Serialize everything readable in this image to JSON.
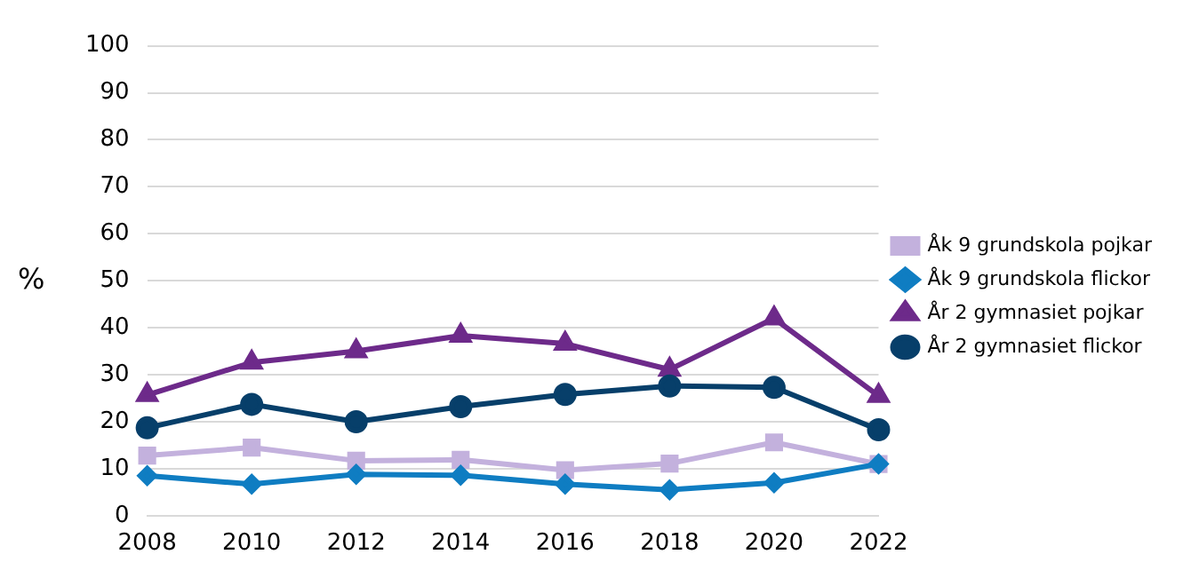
{
  "chart_data": {
    "type": "line",
    "ylabel": "%",
    "categories": [
      "2008",
      "2010",
      "2012",
      "2014",
      "2016",
      "2018",
      "2020",
      "2022"
    ],
    "ylim": [
      0,
      100
    ],
    "yticks": [
      0,
      10,
      20,
      30,
      40,
      50,
      60,
      70,
      80,
      90,
      100
    ],
    "grid": "y",
    "legend": "right",
    "series": [
      {
        "name": "Åk 9 grundskola pojkar",
        "color": "#c3b1dd",
        "marker": "square",
        "values": [
          12.8,
          14.5,
          11.7,
          11.9,
          9.7,
          11.1,
          15.6,
          11.0
        ]
      },
      {
        "name": "Åk 9 grundskola flickor",
        "color": "#0f7dc2",
        "marker": "diamond",
        "values": [
          8.5,
          6.7,
          8.8,
          8.6,
          6.7,
          5.5,
          7.0,
          11.0
        ]
      },
      {
        "name": "År 2 gymnasiet pojkar",
        "color": "#6d2a8a",
        "marker": "triangle",
        "values": [
          25.7,
          32.6,
          35.0,
          38.3,
          36.6,
          31.1,
          42.0,
          25.5
        ]
      },
      {
        "name": "År 2 gymnasiet flickor",
        "color": "#073f6a",
        "marker": "circle",
        "values": [
          18.7,
          23.7,
          20.0,
          23.2,
          25.8,
          27.6,
          27.3,
          18.3
        ]
      }
    ]
  }
}
